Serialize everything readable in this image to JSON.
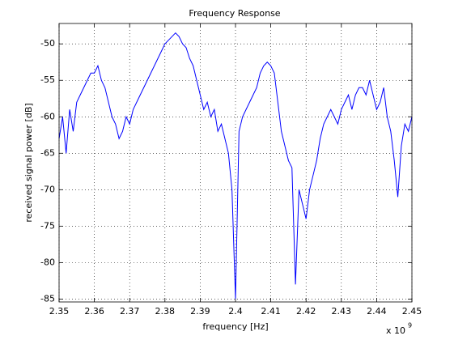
{
  "chart_data": {
    "type": "line",
    "title": "Frequency Response",
    "x_label": "frequency [Hz]",
    "y_label": "received signal power [dB]",
    "x_multiplier": "x 10",
    "x_multiplier_exponent": "9",
    "xlim": [
      2.35,
      2.45
    ],
    "xticks": [
      2.35,
      2.36,
      2.37,
      2.38,
      2.39,
      2.4,
      2.41,
      2.42,
      2.43,
      2.44,
      2.45
    ],
    "ylim": [
      -85.4,
      -47.2
    ],
    "yticks": [
      -85,
      -80,
      -75,
      -70,
      -65,
      -60,
      -55,
      -50
    ],
    "grid": true,
    "x": [
      2.35,
      2.351,
      2.352,
      2.353,
      2.354,
      2.355,
      2.356,
      2.357,
      2.358,
      2.359,
      2.36,
      2.361,
      2.362,
      2.363,
      2.364,
      2.365,
      2.366,
      2.367,
      2.368,
      2.369,
      2.37,
      2.371,
      2.372,
      2.373,
      2.374,
      2.375,
      2.376,
      2.377,
      2.378,
      2.379,
      2.38,
      2.381,
      2.382,
      2.383,
      2.384,
      2.385,
      2.386,
      2.387,
      2.388,
      2.389,
      2.39,
      2.391,
      2.392,
      2.393,
      2.394,
      2.395,
      2.396,
      2.397,
      2.398,
      2.399,
      2.4,
      2.401,
      2.402,
      2.403,
      2.404,
      2.405,
      2.406,
      2.407,
      2.408,
      2.409,
      2.41,
      2.411,
      2.412,
      2.413,
      2.414,
      2.415,
      2.416,
      2.417,
      2.418,
      2.419,
      2.42,
      2.421,
      2.422,
      2.423,
      2.424,
      2.425,
      2.426,
      2.427,
      2.428,
      2.429,
      2.43,
      2.431,
      2.432,
      2.433,
      2.434,
      2.435,
      2.436,
      2.437,
      2.438,
      2.439,
      2.44,
      2.441,
      2.442,
      2.443,
      2.444,
      2.445,
      2.446,
      2.447,
      2.448,
      2.449,
      2.45
    ],
    "series": [
      {
        "color": "#0000ff",
        "values": [
          -63,
          -60,
          -65,
          -59,
          -62,
          -58,
          -57,
          -56,
          -55,
          -54,
          -54,
          -53,
          -55,
          -56,
          -58,
          -60,
          -61,
          -63,
          -62,
          -60,
          -61,
          -59,
          -58,
          -57,
          -56,
          -55,
          -54,
          -53,
          -52,
          -51,
          -50,
          -49.5,
          -49,
          -48.5,
          -49,
          -50,
          -50.5,
          -52,
          -53,
          -55,
          -57,
          -59,
          -58,
          -60,
          -59,
          -62,
          -61,
          -63,
          -65,
          -70,
          -85,
          -62,
          -60,
          -59,
          -58,
          -57,
          -56,
          -54,
          -53,
          -52.5,
          -53,
          -54,
          -58,
          -62,
          -64,
          -66,
          -67,
          -83,
          -70,
          -72,
          -74,
          -70,
          -68,
          -66,
          -63,
          -61,
          -60,
          -59,
          -60,
          -61,
          -59,
          -58,
          -57,
          -59,
          -57,
          -56,
          -56,
          -57,
          -55,
          -57,
          -59,
          -58,
          -56,
          -60,
          -62,
          -66,
          -71,
          -64,
          -61,
          -62,
          -60
        ]
      }
    ]
  }
}
